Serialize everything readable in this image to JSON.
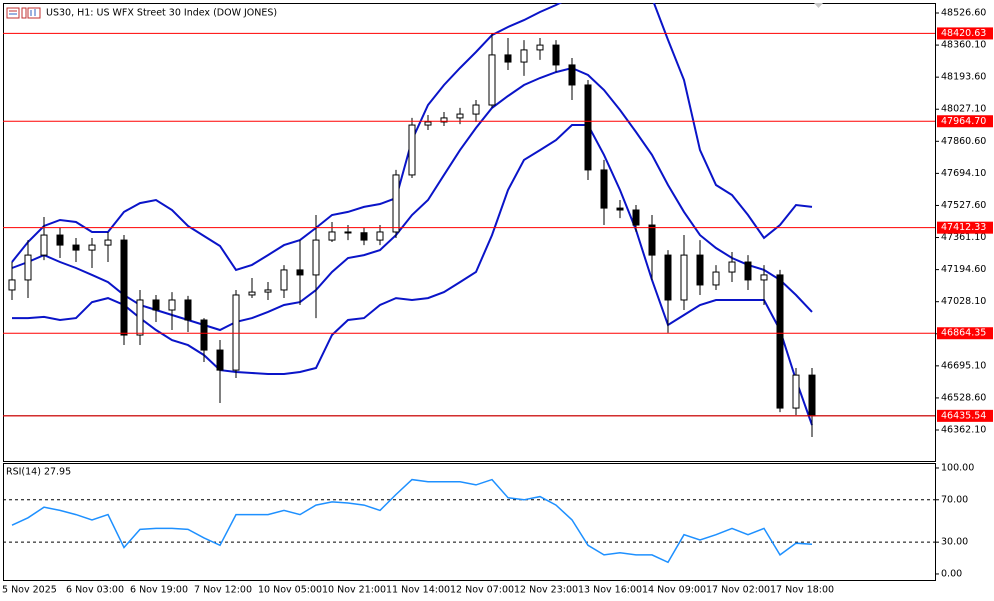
{
  "chart_data": [
    {
      "type": "candlestick",
      "title": "US30, H1: US WFX Street 30 Index (DOW JONES)",
      "categories": [
        "5 Nov 2025",
        null,
        null,
        null,
        "6 Nov 03:00",
        null,
        null,
        null,
        "6 Nov 19:00",
        null,
        null,
        null,
        "7 Nov 12:00",
        null,
        null,
        null,
        "10 Nov 05:00",
        null,
        null,
        null,
        "10 Nov 21:00",
        null,
        null,
        null,
        "11 Nov 14:00",
        null,
        null,
        null,
        "12 Nov 07:00",
        null,
        null,
        null,
        "12 Nov 23:00",
        null,
        null,
        null,
        "13 Nov 16:00",
        null,
        null,
        null,
        "14 Nov 09:00",
        null,
        null,
        null,
        "17 Nov 02:00",
        null,
        null,
        null,
        "17 Nov 18:00",
        null,
        null
      ],
      "open": [
        47089,
        47141,
        47270,
        47374,
        47322,
        47296,
        47322,
        47348,
        46855,
        47037,
        46985,
        47037,
        46933,
        46777,
        46673,
        47063,
        47078,
        47089,
        47193,
        47167,
        47348,
        47390,
        47386,
        47348,
        47390,
        47686,
        47945,
        47961,
        47982,
        48002,
        48049,
        48309,
        48272,
        48335,
        48360,
        48257,
        48153,
        47712,
        47514,
        47504,
        47426,
        47270,
        47037,
        47270,
        47115,
        47182,
        47234,
        47141,
        47167,
        46476,
        46647
      ],
      "high": [
        47234,
        47348,
        47468,
        47411,
        47359,
        47359,
        47390,
        47374,
        47089,
        47063,
        47078,
        47058,
        46943,
        46829,
        47089,
        47151,
        47130,
        47218,
        47348,
        47478,
        47442,
        47426,
        47411,
        47426,
        47712,
        47982,
        47997,
        48013,
        48034,
        48075,
        48423,
        48397,
        48386,
        48397,
        48386,
        48293,
        48179,
        47764,
        47556,
        47530,
        47478,
        47296,
        47374,
        47348,
        47218,
        47286,
        47270,
        47218,
        47193,
        46684,
        46684
      ],
      "low": [
        47037,
        47047,
        47244,
        47255,
        47234,
        47203,
        47234,
        46803,
        46803,
        46923,
        46881,
        46871,
        46715,
        46502,
        46632,
        47047,
        47037,
        47047,
        47011,
        46943,
        47338,
        47348,
        47322,
        47322,
        47359,
        47670,
        47919,
        47940,
        47950,
        47961,
        48034,
        48231,
        48200,
        48283,
        48220,
        48075,
        47660,
        47426,
        47462,
        47390,
        47141,
        46866,
        46985,
        47063,
        47089,
        47130,
        47089,
        47011,
        46455,
        46440,
        46326
      ],
      "close": [
        47141,
        47270,
        47374,
        47322,
        47296,
        47322,
        47348,
        46855,
        47037,
        46985,
        47037,
        46933,
        46777,
        46673,
        47063,
        47078,
        47089,
        47193,
        47167,
        47348,
        47390,
        47386,
        47348,
        47390,
        47686,
        47945,
        47961,
        47982,
        48002,
        48049,
        48309,
        48272,
        48335,
        48360,
        48257,
        48153,
        47712,
        47514,
        47504,
        47426,
        47270,
        47037,
        47270,
        47115,
        47182,
        47234,
        47141,
        47167,
        46476,
        46647,
        46436
      ],
      "up_color": "#ffffff",
      "down_color": "#000000",
      "wick_color": "#000000",
      "bands": [
        {
          "color": "#0a14c8",
          "values": [
            47234,
            47338,
            47421,
            47452,
            47442,
            47390,
            47390,
            47494,
            47540,
            47556,
            47504,
            47421,
            47369,
            47317,
            47193,
            47219,
            47270,
            47322,
            47348,
            47411,
            47478,
            47494,
            47520,
            47535,
            47566,
            47867,
            48049,
            48153,
            48241,
            48324,
            48412,
            48454,
            48490,
            48532,
            48568,
            48610,
            48625,
            48646,
            48656,
            48636,
            48605,
            48387,
            48179,
            47815,
            47634,
            47582,
            47478,
            47359,
            47426,
            47530,
            47520
          ]
        },
        {
          "color": "#0a14c8",
          "values": [
            47203,
            47234,
            47270,
            47234,
            47203,
            47167,
            47130,
            47063,
            47011,
            46985,
            46959,
            46933,
            46907,
            46881,
            46923,
            46943,
            46975,
            47011,
            47026,
            47089,
            47182,
            47255,
            47270,
            47296,
            47374,
            47478,
            47556,
            47686,
            47815,
            47930,
            48034,
            48096,
            48153,
            48189,
            48220,
            48241,
            48205,
            48127,
            48023,
            47909,
            47790,
            47634,
            47494,
            47374,
            47307,
            47255,
            47219,
            47193,
            47141,
            47063,
            46975
          ]
        },
        {
          "color": "#0a14c8",
          "values": [
            46943,
            46943,
            46949,
            46933,
            46943,
            47026,
            47047,
            47011,
            46943,
            46881,
            46829,
            46803,
            46751,
            46673,
            46663,
            46658,
            46653,
            46653,
            46663,
            46684,
            46855,
            46933,
            46943,
            47011,
            47047,
            47037,
            47047,
            47078,
            47130,
            47182,
            47374,
            47608,
            47764,
            47815,
            47867,
            47945,
            47945,
            47790,
            47608,
            47400,
            47141,
            46907,
            46959,
            47011,
            47037,
            47037,
            47037,
            47037,
            46881,
            46622,
            46388
          ]
        }
      ],
      "levels": [
        48420.63,
        {
          "value": 47964.7,
          "label": "47964.70"
        },
        47412.33,
        46864.35,
        46435.54
      ],
      "level_color": "#ff0000",
      "close_line_color": "#000000",
      "ylim": [
        46201.2,
        48578.5
      ],
      "yticks": [
        {
          "value": 48526.6,
          "label": "48526.60"
        },
        {
          "value": 48360.1,
          "label": "48360.10"
        },
        {
          "value": 48193.6,
          "label": "48193.60"
        },
        {
          "value": 48027.1,
          "label": "48027.10"
        },
        {
          "value": 47860.6,
          "label": "47860.60"
        },
        {
          "value": 47694.1,
          "label": "47694.10"
        },
        {
          "value": 47527.6,
          "label": "47527.60"
        },
        {
          "value": 47361.1,
          "label": "47361.10"
        },
        {
          "value": 47194.6,
          "label": "47194.60"
        },
        {
          "value": 47028.1,
          "label": "47028.10"
        },
        {
          "value": 46861.6,
          "label": "46861.60"
        },
        {
          "value": 46695.1,
          "label": "46695.10"
        },
        {
          "value": 46528.6,
          "label": "46528.60"
        },
        {
          "value": 46362.1,
          "label": "46362.10"
        }
      ]
    },
    {
      "type": "line",
      "title": "RSI(14) 27.95",
      "values": [
        46,
        53,
        63,
        60,
        56,
        51,
        56,
        25,
        42,
        43,
        43,
        42,
        34,
        27,
        56,
        56,
        56,
        60,
        56,
        65,
        68,
        67,
        65,
        60,
        75,
        89,
        87,
        87,
        87,
        84,
        89,
        72,
        70,
        73,
        65,
        51,
        27,
        18,
        20,
        18,
        18,
        11,
        37,
        32,
        37,
        43,
        37,
        43,
        18,
        29,
        27.95
      ],
      "color": "#1e90ff",
      "levels": [
        70,
        30
      ],
      "ylim": [
        -5.7,
        104.7
      ],
      "yticks": [
        {
          "value": 100,
          "label": "100.00"
        },
        {
          "value": 70,
          "label": "70.00"
        },
        {
          "value": 30,
          "label": "30.00"
        },
        {
          "value": 0,
          "label": "0.00"
        }
      ]
    }
  ]
}
